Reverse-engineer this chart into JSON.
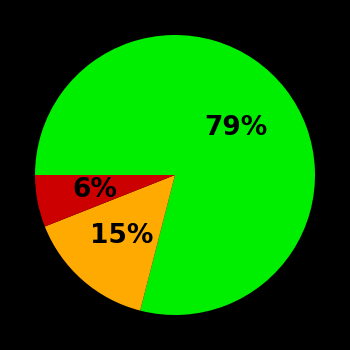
{
  "slices": [
    79,
    15,
    6
  ],
  "colors": [
    "#00ee00",
    "#ffaa00",
    "#cc0000"
  ],
  "labels": [
    "79%",
    "15%",
    "6%"
  ],
  "background_color": "#000000",
  "startangle": 180,
  "counterclock": false,
  "figsize": [
    3.5,
    3.5
  ],
  "dpi": 100,
  "label_fontsize": 19,
  "label_fontweight": "bold",
  "label_radii": [
    0.55,
    0.58,
    0.58
  ]
}
